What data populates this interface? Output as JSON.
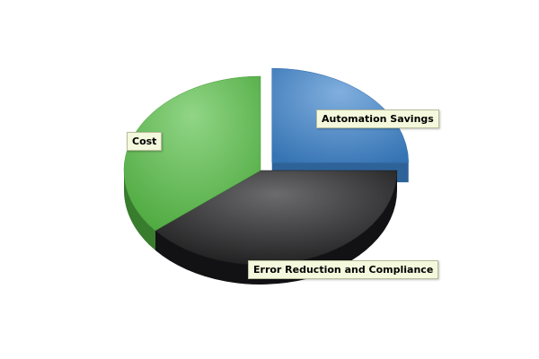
{
  "chart_data": {
    "type": "pie",
    "style": "3d-exploded",
    "slices": [
      {
        "label": "Automation Savings",
        "value": 25,
        "color": "#3d84cc",
        "exploded": true
      },
      {
        "label": "Error Reduction and Compliance",
        "value": 39,
        "color": "#1c1c1e",
        "exploded": false
      },
      {
        "label": "Cost",
        "value": 36,
        "color": "#56bf45",
        "exploded": false
      }
    ],
    "legend": "none"
  }
}
